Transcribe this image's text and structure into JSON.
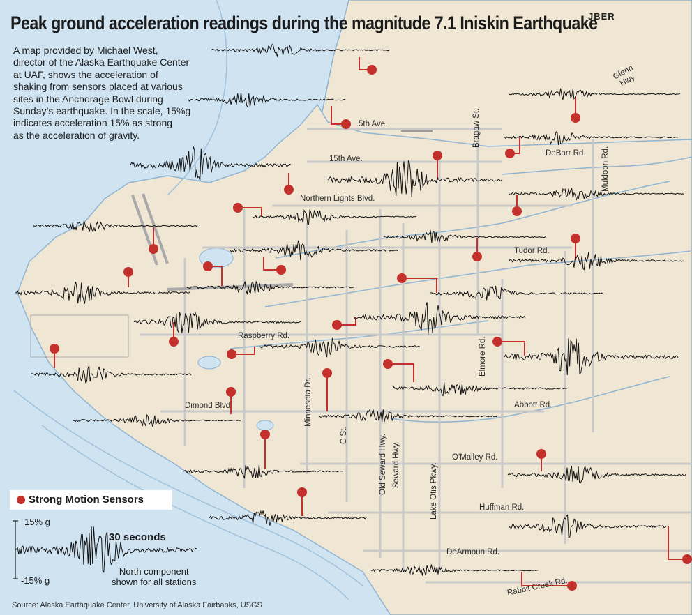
{
  "title": "Peak ground acceleration readings during the magnitude 7.1 Iniskin Earthquake",
  "blurb_lines": [
    "A map provided by Michael West,",
    "director of the Alaska Earthquake Center",
    "at UAF, shows the acceleration of",
    "shaking from sensors placed at various",
    "sites in the Anchorage Bowl during",
    "Sunday’s earthquake. In the scale, 15%g",
    "indicates acceleration 15% as strong",
    "as the acceleration of gravity."
  ],
  "jber_label": "JBER",
  "streets": {
    "fifth_ave": "5th Ave.",
    "fifteenth_ave": "15th Ave.",
    "northern_lights": "Northern Lights  Blvd.",
    "debarr": "DeBarr Rd.",
    "tudor": "Tudor Rd.",
    "raspberry": "Raspberry Rd.",
    "dimond": "Dimond Blvd",
    "abbott": "Abbott  Rd.",
    "omalley": "O'Malley Rd.",
    "huffman": "Huffman Rd.",
    "dearmoun": "DeArmoun Rd.",
    "rabbit_creek": "Rabbit Creek Rd.",
    "glenn_hwy": "Glenn\nHwy",
    "bragaw": "Bragaw St.",
    "muldoon": "Muldoon Rd.",
    "elmore": "Elmore Rd.",
    "minnesota": "Minnesota Dr.",
    "c_st": "C St.",
    "old_seward": "Old Seward Hwy.",
    "seward": "Seward Hwy.",
    "lake_otis": "Lake Otis  Pkwy."
  },
  "legend": {
    "label": "Strong Motion Sensors",
    "scale_high": "15% g",
    "scale_low": "-15% g",
    "duration": "30 seconds",
    "note_line1": "North component",
    "note_line2": "shown for all stations"
  },
  "source": "Source: Alaska Earthquake Center, University of Alaska Fairbanks, USGS",
  "colors": {
    "water": "#cfe3f1",
    "land": "#efe6d4",
    "road": "#c8c8c8",
    "sensor": "#c4302b",
    "trace": "#111111"
  },
  "stations": [
    {
      "id": "s1",
      "peak": 0.35
    },
    {
      "id": "s2",
      "peak": 0.45
    },
    {
      "id": "s3",
      "peak": 0.3
    },
    {
      "id": "s4",
      "peak": 0.35
    },
    {
      "id": "s5",
      "peak": 0.35
    },
    {
      "id": "s6",
      "peak": 1.0
    },
    {
      "id": "s7",
      "peak": 0.9
    },
    {
      "id": "s8",
      "peak": 0.35
    },
    {
      "id": "s9",
      "peak": 0.3
    },
    {
      "id": "s10",
      "peak": 0.35
    },
    {
      "id": "s11",
      "peak": 0.45
    },
    {
      "id": "s12",
      "peak": 0.5
    },
    {
      "id": "s13",
      "peak": 0.35
    },
    {
      "id": "s14",
      "peak": 0.55
    },
    {
      "id": "s15",
      "peak": 0.4
    },
    {
      "id": "s16",
      "peak": 0.55
    },
    {
      "id": "s17",
      "peak": 0.85
    },
    {
      "id": "s18",
      "peak": 0.5
    },
    {
      "id": "s19",
      "peak": 0.45
    },
    {
      "id": "s20",
      "peak": 0.45
    },
    {
      "id": "s21",
      "peak": 0.95
    },
    {
      "id": "s22",
      "peak": 0.3
    },
    {
      "id": "s23",
      "peak": 0.35
    },
    {
      "id": "s24",
      "peak": 0.4
    },
    {
      "id": "s25",
      "peak": 0.5
    },
    {
      "id": "s26",
      "peak": 0.45
    },
    {
      "id": "s27",
      "peak": 0.6
    }
  ]
}
